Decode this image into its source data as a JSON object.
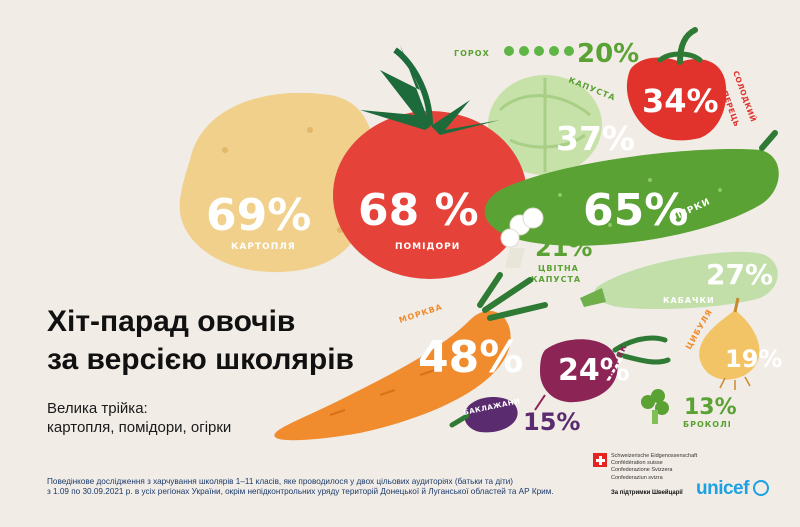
{
  "title_line1": "Хіт-парад овочів",
  "title_line2": "за версією школярів",
  "subtitle_line1": "Велика трійка:",
  "subtitle_line2": "картопля, помідори, огірки",
  "footnote_line1": "Поведінкове дослідження з харчування школярів 1–11 класів, яке проводилося у двох цільових аудиторіях (батьки та діти)",
  "footnote_line2": "з 1.09 по 30.09.2021 р. в усіх регіонах України, окрім непідконтрольних уряду територій Донецької й Луганської областей та АР Крим.",
  "swiss": {
    "name1": "Schweizerische Eidgenossenschaft",
    "name2": "Confédération suisse",
    "name3": "Confederazione Svizzera",
    "name4": "Confederaziun svizra",
    "support": "За підтримки Швейцарії"
  },
  "unicef_logo": "unicef",
  "vegetables": {
    "potato": {
      "label": "КАРТОПЛЯ",
      "value": "69%",
      "color": "#f0d08a"
    },
    "tomato": {
      "label": "ПОМІДОРИ",
      "value": "68 %",
      "color": "#e5433a"
    },
    "cucumber": {
      "label": "ОГІРКИ",
      "value": "65%",
      "color": "#5aa233"
    },
    "carrot": {
      "label": "МОРКВА",
      "value": "48%",
      "color": "#f08c2e"
    },
    "cabbage": {
      "label": "КАПУСТА",
      "value": "37%",
      "color": "#c7e2a8"
    },
    "pepper": {
      "label1": "СОЛОДКИЙ",
      "label2": "ПЕРЕЦЬ",
      "value": "34%",
      "color": "#e1322b"
    },
    "zucchini": {
      "label": "КАБАЧКИ",
      "value": "27%",
      "color": "#c2dfaa"
    },
    "beet": {
      "label": "БУРЯК",
      "value": "24%",
      "color": "#8c2455"
    },
    "cauliflower": {
      "label1": "ЦВІТНА",
      "label2": "КАПУСТА",
      "value": "21%"
    },
    "peas": {
      "label": "ГОРОХ",
      "value": "20%",
      "color": "#5fb545"
    },
    "onion": {
      "label": "ЦИБУЛЯ",
      "value": "19%",
      "color": "#f3c466"
    },
    "eggplant": {
      "label": "БАКЛАЖАНИ",
      "value": "15%",
      "color": "#5a2b6e"
    },
    "broccoli": {
      "label": "БРОКОЛІ",
      "value": "13%",
      "color": "#5aa233"
    }
  }
}
